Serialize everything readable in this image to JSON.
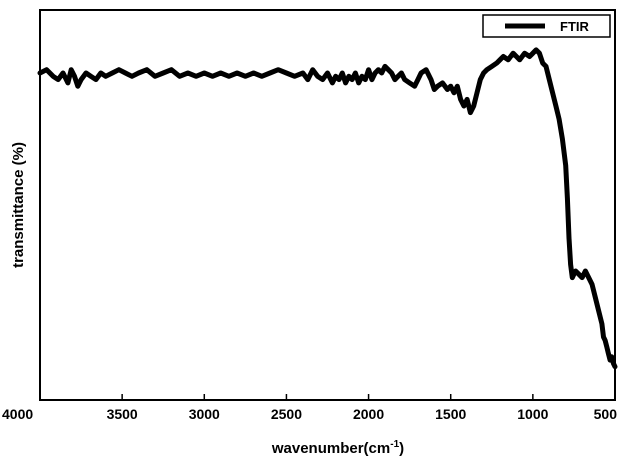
{
  "chart_data": {
    "type": "line",
    "title": "",
    "xlabel": "wavenumber(cm",
    "xlabel_sup": "-1",
    "xlabel_close": ")",
    "ylabel": "transmittance (%)",
    "xlim": [
      4000,
      500
    ],
    "x_reversed": true,
    "ylim": [
      0,
      100
    ],
    "y_ticks_shown": false,
    "grid": false,
    "legend_position": "top-right",
    "x_ticks": [
      "4000",
      "3500",
      "3000",
      "2500",
      "2000",
      "1500",
      "1000",
      "500"
    ],
    "x_tick_values": [
      4000,
      3500,
      3000,
      2500,
      2000,
      1500,
      1000,
      500
    ],
    "series": [
      {
        "name": "FTIR",
        "color": "#000000",
        "x": [
          4000,
          3960,
          3920,
          3890,
          3860,
          3830,
          3810,
          3790,
          3770,
          3750,
          3720,
          3690,
          3660,
          3630,
          3600,
          3560,
          3520,
          3480,
          3440,
          3400,
          3350,
          3300,
          3250,
          3200,
          3150,
          3100,
          3050,
          3000,
          2950,
          2900,
          2850,
          2800,
          2750,
          2700,
          2650,
          2600,
          2550,
          2500,
          2450,
          2400,
          2370,
          2340,
          2310,
          2280,
          2250,
          2220,
          2200,
          2180,
          2160,
          2140,
          2120,
          2100,
          2080,
          2060,
          2040,
          2020,
          2000,
          1980,
          1960,
          1940,
          1920,
          1900,
          1880,
          1860,
          1840,
          1820,
          1800,
          1780,
          1750,
          1720,
          1700,
          1680,
          1650,
          1620,
          1600,
          1580,
          1550,
          1520,
          1500,
          1480,
          1460,
          1440,
          1420,
          1400,
          1380,
          1360,
          1340,
          1320,
          1300,
          1280,
          1250,
          1220,
          1200,
          1180,
          1150,
          1120,
          1100,
          1080,
          1050,
          1020,
          1000,
          980,
          960,
          940,
          920,
          900,
          880,
          860,
          840,
          820,
          800,
          790,
          780,
          770,
          760,
          750,
          740,
          720,
          700,
          680,
          660,
          640,
          620,
          600,
          580,
          570,
          560,
          550,
          540,
          530,
          520,
          510,
          500
        ],
        "y": [
          90,
          91,
          89,
          88,
          90,
          87,
          91,
          89,
          86,
          88,
          90,
          89,
          88,
          90,
          89,
          90,
          91,
          90,
          89,
          90,
          91,
          89,
          90,
          91,
          89,
          90,
          89,
          90,
          89,
          90,
          89,
          90,
          89,
          90,
          89,
          90,
          91,
          90,
          89,
          90,
          88,
          91,
          89,
          88,
          90,
          87,
          89,
          88,
          90,
          87,
          89,
          88,
          90,
          87,
          89,
          88,
          91,
          88,
          90,
          91,
          90,
          92,
          91,
          90,
          88,
          89,
          90,
          88,
          87,
          86,
          88,
          90,
          91,
          88,
          85,
          86,
          87,
          85,
          86,
          84,
          86,
          82,
          80,
          82,
          78,
          80,
          84,
          88,
          90,
          91,
          92,
          93,
          94,
          95,
          94,
          96,
          95,
          94,
          96,
          95,
          96,
          97,
          96,
          93,
          92,
          88,
          84,
          80,
          76,
          70,
          62,
          52,
          40,
          32,
          28,
          29,
          30,
          29,
          28,
          30,
          28,
          26,
          22,
          18,
          14,
          10,
          9,
          7,
          5,
          3,
          4,
          2,
          1
        ]
      }
    ]
  }
}
